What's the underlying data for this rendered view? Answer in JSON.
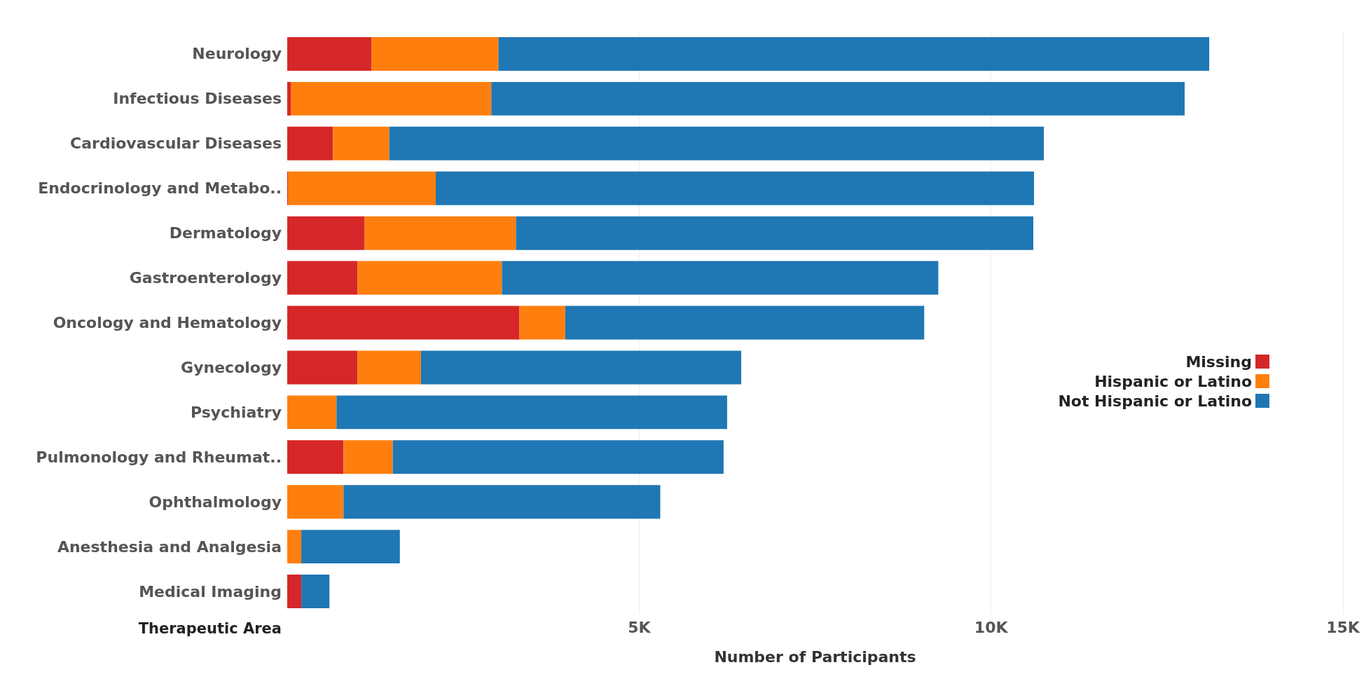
{
  "chart_data": {
    "type": "bar",
    "orientation": "horizontal",
    "stacked": true,
    "ylabel": "Therapeutic Area",
    "xlabel": "Number of Participants",
    "categories": [
      "Neurology",
      "Infectious Diseases",
      "Cardiovascular Diseases",
      "Endocrinology and Metabo..",
      "Dermatology",
      "Gastroenterology",
      "Oncology and Hematology",
      "Gynecology",
      "Psychiatry",
      "Pulmonology and Rheumat..",
      "Ophthalmology",
      "Anesthesia and Analgesia",
      "Medical Imaging"
    ],
    "series": [
      {
        "name": "Missing",
        "color": "#d62728",
        "values": [
          1200,
          50,
          650,
          10,
          1100,
          1000,
          3300,
          1000,
          0,
          800,
          0,
          0,
          200
        ]
      },
      {
        "name": "Hispanic or Latino",
        "color": "#ff7f0e",
        "values": [
          1800,
          2850,
          800,
          2100,
          2150,
          2050,
          650,
          900,
          700,
          700,
          800,
          200,
          0
        ]
      },
      {
        "name": "Not Hispanic or Latino",
        "color": "#1f77b4",
        "values": [
          10100,
          9850,
          9300,
          8500,
          7350,
          6200,
          5100,
          4550,
          5550,
          4700,
          4500,
          1400,
          400
        ]
      }
    ],
    "xlim": [
      0,
      15000
    ],
    "xticks": [
      {
        "value": 5000,
        "label": "5K"
      },
      {
        "value": 10000,
        "label": "10K"
      },
      {
        "value": 15000,
        "label": "15K"
      }
    ],
    "grid": "x",
    "legend": "right"
  }
}
